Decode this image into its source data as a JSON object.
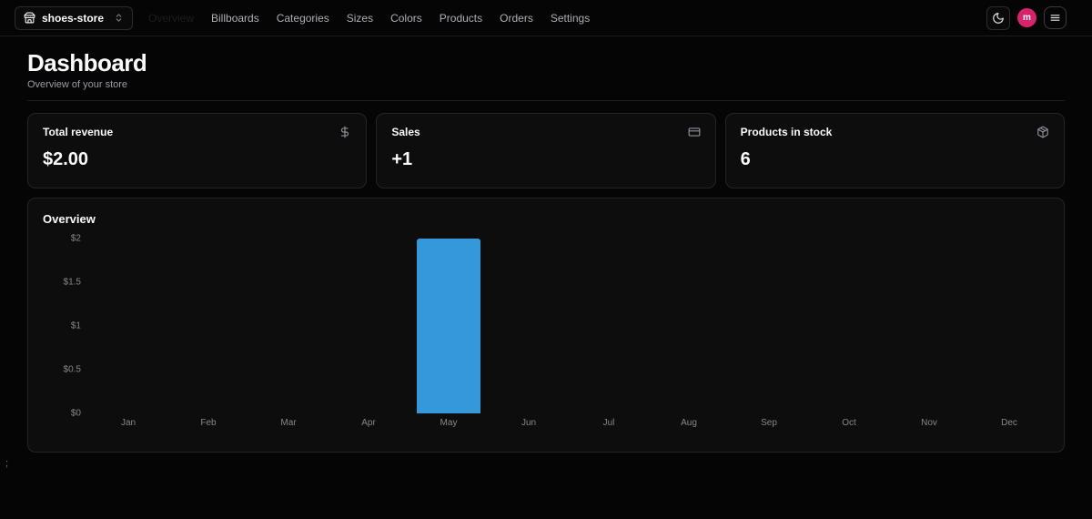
{
  "navbar": {
    "store": {
      "label": "shoes-store",
      "icon": "store-icon",
      "chevron_icon": "chevrons-up-down-icon"
    },
    "items": [
      {
        "label": "Overview",
        "active": true
      },
      {
        "label": "Billboards",
        "active": false
      },
      {
        "label": "Categories",
        "active": false
      },
      {
        "label": "Sizes",
        "active": false
      },
      {
        "label": "Colors",
        "active": false
      },
      {
        "label": "Products",
        "active": false
      },
      {
        "label": "Orders",
        "active": false
      },
      {
        "label": "Settings",
        "active": false
      }
    ],
    "theme_toggle_icon": "moon-icon",
    "avatar": {
      "letter": "m",
      "color": "#d6246b"
    },
    "menu_icon": "menu-icon"
  },
  "page": {
    "title": "Dashboard",
    "subtitle": "Overview of your store"
  },
  "stats": [
    {
      "label": "Total revenue",
      "value": "$2.00",
      "icon": "dollar-sign-icon"
    },
    {
      "label": "Sales",
      "value": "+1",
      "icon": "credit-card-icon"
    },
    {
      "label": "Products in stock",
      "value": "6",
      "icon": "package-icon"
    }
  ],
  "chart_card": {
    "title": "Overview"
  },
  "chart_data": {
    "type": "bar",
    "title": "Overview",
    "categories": [
      "Jan",
      "Feb",
      "Mar",
      "Apr",
      "May",
      "Jun",
      "Jul",
      "Aug",
      "Sep",
      "Oct",
      "Nov",
      "Dec"
    ],
    "values": [
      0,
      0,
      0,
      0,
      2,
      0,
      0,
      0,
      0,
      0,
      0,
      0
    ],
    "xlabel": "",
    "ylabel": "",
    "ylim": [
      0,
      2
    ],
    "yticks": [
      {
        "value": 2,
        "label": "$2"
      },
      {
        "value": 1.5,
        "label": "$1.5"
      },
      {
        "value": 1,
        "label": "$1"
      },
      {
        "value": 0.5,
        "label": "$0.5"
      },
      {
        "value": 0,
        "label": "$0"
      }
    ],
    "bar_color": "#3498db",
    "grid": false,
    "legend": false
  },
  "stray_text": ";"
}
